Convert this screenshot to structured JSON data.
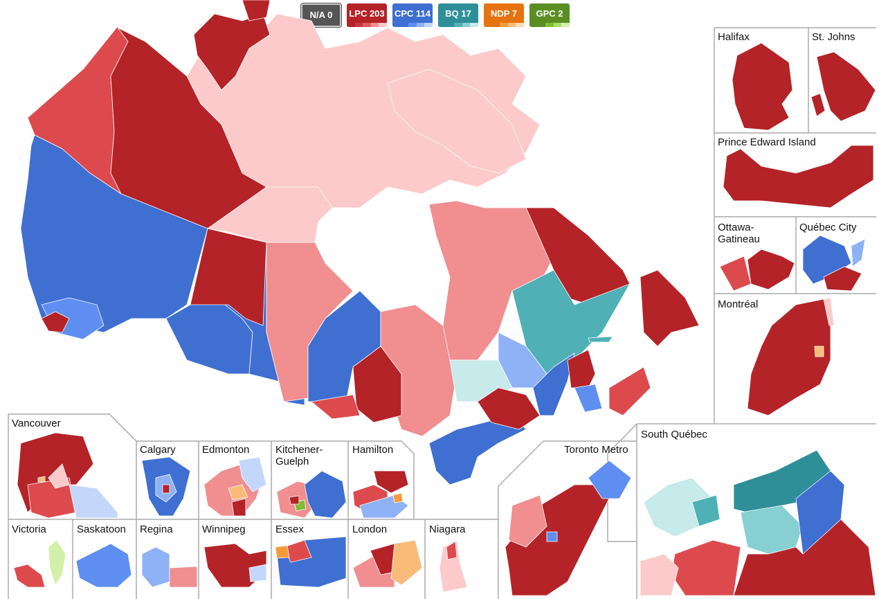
{
  "parties": [
    {
      "id": "na",
      "label": "N/A 0",
      "color": "#555555",
      "shades": []
    },
    {
      "id": "lpc",
      "label": "LPC 203",
      "color": "#b42328",
      "shades": [
        "#c53a3f",
        "#dd5a5e",
        "#f08e90",
        "#fccaca"
      ]
    },
    {
      "id": "cpc",
      "label": "CPC 114",
      "color": "#3f6fd0",
      "shades": [
        "#3f6fd0",
        "#5e8ef0",
        "#8fb1f5",
        "#c4d7fa"
      ]
    },
    {
      "id": "bq",
      "label": "BQ 17",
      "color": "#2f8f98",
      "shades": [
        "#2f8f98",
        "#4fb0b6",
        "#86cfd2",
        "#c7eaea"
      ]
    },
    {
      "id": "ndp",
      "label": "NDP 7",
      "color": "#e5730f",
      "shades": [
        "#e5730f",
        "#f49a3c",
        "#f8bb79",
        "#fcdcb6"
      ]
    },
    {
      "id": "gpc",
      "label": "GPC 2",
      "color": "#5a8e22",
      "shades": [
        "#5a8e22",
        "#7fbd33",
        "#a9dc6c",
        "#d3f0aa"
      ]
    }
  ],
  "insets": {
    "halifax": "Halifax",
    "st_johns": "St. Johns",
    "pei": "Prince Edward Island",
    "ottawa_gatineau": "Ottawa-\nGatineau",
    "quebec_city": "Québec City",
    "montreal": "Montréal",
    "south_quebec": "South Québec",
    "toronto_metro": "Toronto Metro",
    "vancouver": "Vancouver",
    "calgary": "Calgary",
    "edmonton": "Edmonton",
    "kitchener_guelph": "Kitchener-\nGuelph",
    "hamilton": "Hamilton",
    "victoria": "Victoria",
    "saskatoon": "Saskatoon",
    "regina": "Regina",
    "winnipeg": "Winnipeg",
    "essex": "Essex",
    "london": "London",
    "niagara": "Niagara"
  }
}
